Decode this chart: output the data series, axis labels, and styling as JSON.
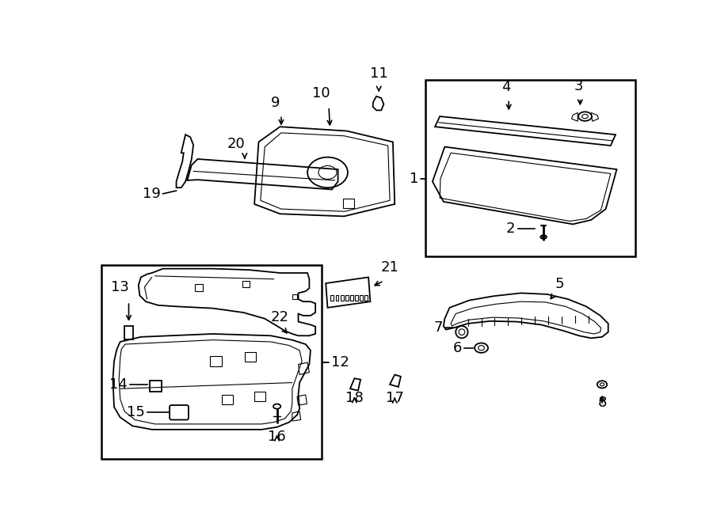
{
  "bg_color": "#ffffff",
  "line_color": "#000000",
  "fig_width": 9.0,
  "fig_height": 6.61,
  "dpi": 100,
  "lw_main": 1.3,
  "lw_inner": 0.8,
  "label_fontsize": 13
}
